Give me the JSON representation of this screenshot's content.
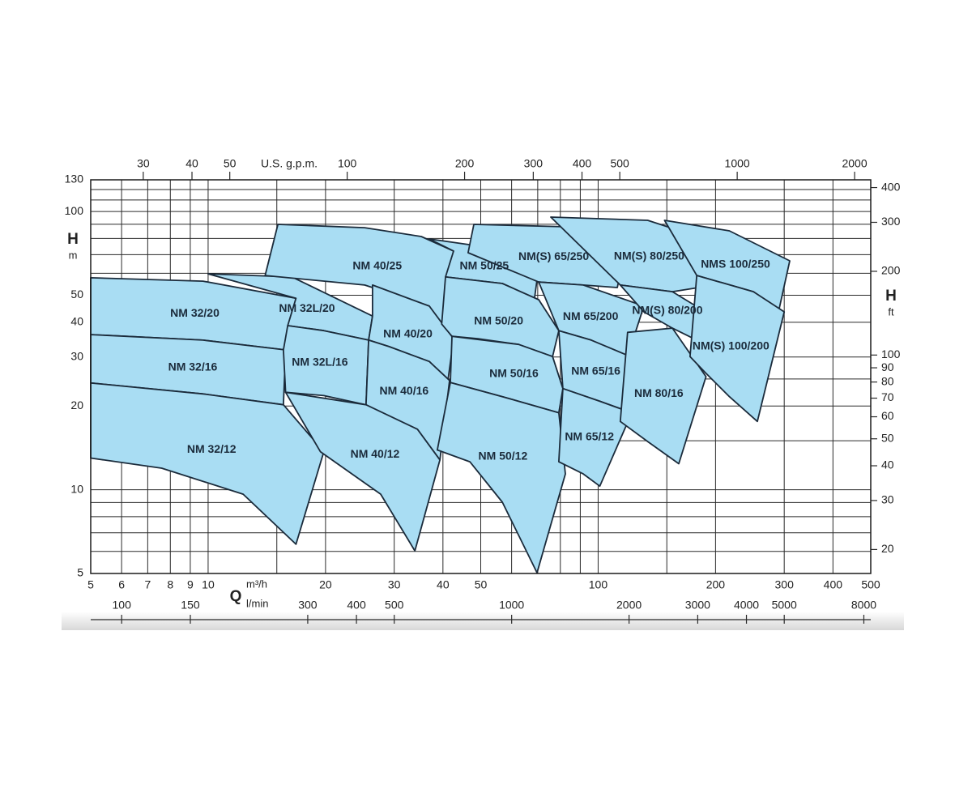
{
  "chart_data": {
    "type": "region",
    "xscale": "log",
    "yscale": "log",
    "xlim": [
      5,
      500
    ],
    "ylim": [
      5,
      130
    ],
    "xticks": [
      5,
      6,
      7,
      8,
      9,
      10,
      20,
      30,
      40,
      50,
      100,
      200,
      300,
      400,
      500
    ],
    "x_minor_grid": [
      15,
      60,
      70,
      80,
      90,
      150
    ],
    "yticks": [
      5,
      10,
      20,
      30,
      40,
      50,
      100,
      130
    ],
    "y_minor_grid": [
      6,
      7,
      8,
      9,
      15,
      25,
      60,
      70,
      80,
      90,
      110,
      120
    ],
    "xlabel": "Q",
    "xunit": "m³/h",
    "ylabel": "H",
    "yunit": "m",
    "x2lim": [
      22,
      2200
    ],
    "x2ticks": [
      30,
      40,
      50,
      100,
      200,
      300,
      400,
      500,
      1000,
      2000
    ],
    "x2label": "U.S. g.p.m.",
    "x3lim": [
      83.3,
      8333
    ],
    "x3ticks": [
      100,
      150,
      300,
      400,
      500,
      1000,
      2000,
      3000,
      4000,
      5000,
      8000
    ],
    "x3unit": "l/min",
    "y2lim": [
      16.4,
      426.5
    ],
    "y2ticks": [
      20,
      30,
      40,
      50,
      60,
      70,
      80,
      90,
      100,
      200,
      300,
      400
    ],
    "y2label": "H",
    "y2unit": "ft",
    "grid": true,
    "fill": "#a9ddf3",
    "stroke": "#1b2b3b",
    "regions": [
      {
        "name": "NM 32/20",
        "q": [
          5,
          9.7,
          16.8,
          15.8,
          9.7,
          5
        ],
        "h": [
          57.8,
          56.2,
          48.8,
          31.8,
          34.5,
          36.1
        ]
      },
      {
        "name": "NM 32/16",
        "q": [
          5,
          9.7,
          15.8,
          15.6,
          9.7,
          5
        ],
        "h": [
          36.1,
          34.5,
          31.8,
          20.2,
          22.1,
          24.2
        ]
      },
      {
        "name": "NM 32/12",
        "q": [
          5,
          9.7,
          15.6,
          19.8,
          16.8,
          12.3,
          7.6,
          5
        ],
        "h": [
          24.2,
          22.1,
          20.2,
          13.7,
          6.37,
          9.64,
          11.95,
          13.0
        ]
      },
      {
        "name": "NM 32L/20",
        "q": [
          10,
          16.4,
          26.4,
          25.8,
          19.8,
          16.0,
          16.8
        ],
        "h": [
          59.7,
          58.2,
          42.1,
          34.5,
          37.3,
          38.9,
          48.8
        ]
      },
      {
        "name": "NM 32L/16",
        "q": [
          16.0,
          19.8,
          25.8,
          25.4,
          19.8,
          15.8,
          15.6
        ],
        "h": [
          38.9,
          37.3,
          34.5,
          20.2,
          21.8,
          22.4,
          31.8
        ]
      },
      {
        "name": "NM 40/25",
        "q": [
          15.1,
          25.2,
          35.2,
          42.6,
          39.7,
          36.9,
          25.2,
          14.0
        ],
        "h": [
          89.9,
          87.5,
          81.3,
          72.1,
          39.4,
          45.7,
          54.4,
          58.9
        ]
      },
      {
        "name": "NM 40/20",
        "q": [
          26.4,
          36.9,
          42.6,
          41.2,
          36.9,
          29.1,
          25.8,
          26.4
        ],
        "h": [
          54.4,
          45.7,
          34.9,
          24.7,
          28.9,
          32.7,
          34.5,
          42.1
        ]
      },
      {
        "name": "NM 40/16",
        "q": [
          25.8,
          29.1,
          36.9,
          41.6,
          39.3,
          34.4,
          26.4,
          25.4
        ],
        "h": [
          34.5,
          32.7,
          28.9,
          24.7,
          12.8,
          16.5,
          19.5,
          20.2
        ]
      },
      {
        "name": "NM 40/12",
        "q": [
          15.8,
          25.4,
          34.4,
          39.3,
          33.9,
          27.7,
          19.4
        ],
        "h": [
          22.4,
          20.2,
          16.5,
          12.8,
          6.03,
          9.64,
          13.7
        ]
      },
      {
        "name": "NM 50/25",
        "q": [
          36.9,
          51.6,
          70.4,
          68.7,
          56.8,
          40.6,
          42.6
        ],
        "h": [
          79.7,
          74.5,
          63.0,
          48.8,
          55.1,
          58.2,
          72.1
        ]
      },
      {
        "name": "NM 50/20",
        "q": [
          40.6,
          56.8,
          70.4,
          79.3,
          76.4,
          62.5,
          49.2,
          42.2,
          39.7
        ],
        "h": [
          58.2,
          55.1,
          48.2,
          37.3,
          30.1,
          33.3,
          34.9,
          35.6,
          39.4
        ]
      },
      {
        "name": "NM 50/16",
        "q": [
          42.2,
          62.5,
          76.4,
          81.2,
          79.3,
          56.8,
          41.8
        ],
        "h": [
          35.6,
          33.3,
          30.1,
          23.1,
          18.9,
          21.6,
          24.3
        ]
      },
      {
        "name": "NM 50/12",
        "q": [
          41.8,
          56.8,
          79.3,
          82.4,
          69.7,
          56.8,
          46.9,
          38.7
        ],
        "h": [
          24.3,
          21.6,
          18.9,
          11.4,
          5.03,
          9.02,
          12.6,
          13.9
        ]
      },
      {
        "name": "NM(S) 65/250",
        "q": [
          48.0,
          83.2,
          119,
          112,
          91.6,
          70.4,
          46.4
        ],
        "h": [
          89.9,
          88.1,
          79.1,
          53.3,
          54.4,
          55.8,
          71.1
        ]
      },
      {
        "name": "NM 65/200",
        "q": [
          70.4,
          91.6,
          131,
          119,
          96.0,
          79.3
        ],
        "h": [
          55.8,
          54.4,
          45.7,
          30.1,
          34.5,
          37.3
        ]
      },
      {
        "name": "NM 65/16",
        "q": [
          79.3,
          96.0,
          121,
          122,
          101,
          81.2
        ],
        "h": [
          37.3,
          34.5,
          30.1,
          18.9,
          20.8,
          23.1
        ]
      },
      {
        "name": "NM 65/12",
        "q": [
          81.2,
          101,
          122,
          101,
          91.6,
          79.3
        ],
        "h": [
          23.1,
          20.8,
          18.9,
          10.3,
          11.4,
          12.6
        ]
      },
      {
        "name": "NM(S) 80/250",
        "q": [
          75.6,
          134,
          188,
          181,
          155,
          114
        ],
        "h": [
          95.5,
          93.0,
          79.7,
          53.3,
          51.5,
          54.4
        ]
      },
      {
        "name": "NM(S) 80/200",
        "q": [
          114,
          155,
          181,
          179,
          155,
          131
        ],
        "h": [
          54.4,
          51.5,
          45.1,
          34.5,
          38.1,
          43.6
        ]
      },
      {
        "name": "NM 80/16",
        "q": [
          119,
          155,
          189,
          161,
          134,
          114
        ],
        "h": [
          36.8,
          38.1,
          25.5,
          12.4,
          14.9,
          17.6
        ]
      },
      {
        "name": "NMS 100/250",
        "q": [
          148,
          217,
          310,
          291,
          250,
          179
        ],
        "h": [
          93.0,
          85.2,
          66.5,
          44.5,
          51.5,
          58.9
        ]
      },
      {
        "name": "NM(S) 100/200",
        "q": [
          179,
          250,
          300,
          256,
          217,
          188,
          172
        ],
        "h": [
          58.9,
          51.5,
          43.6,
          17.6,
          21.6,
          26.4,
          30.1
        ]
      }
    ]
  }
}
